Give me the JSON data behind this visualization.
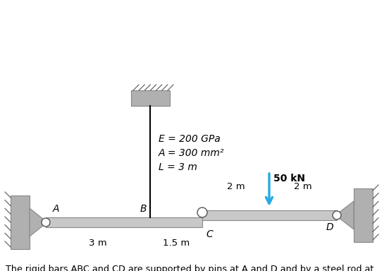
{
  "title_text": "The rigid bars ABC and CD are supported by pins at A and D and by a steel rod at\nB. There is a roller connection between the bars at C. Compute the vertical\ndisplacement (in mm) of point C caused by the 50-kN load. Express your answer\nto two decimal places. Do not include the unit. *",
  "param_line1": "E = 200 GPa",
  "param_line2": "A = 300 mm²",
  "param_line3": "L = 3 m",
  "load_label": "50 kN",
  "dim_2m_left": "2 m",
  "dim_2m_right": "2 m",
  "dim_3m": "3 m",
  "dim_15m": "1.5 m",
  "label_A": "A",
  "label_B": "B",
  "label_C": "C",
  "label_D": "D",
  "bg_color": "#ffffff",
  "bar_color": "#c8c8c8",
  "wall_color": "#b0b0b0",
  "arrow_color": "#29abe2",
  "text_color": "#000000",
  "title_fontsize": 9.2,
  "label_fontsize": 10,
  "param_fontsize": 10,
  "dim_fontsize": 9.5
}
